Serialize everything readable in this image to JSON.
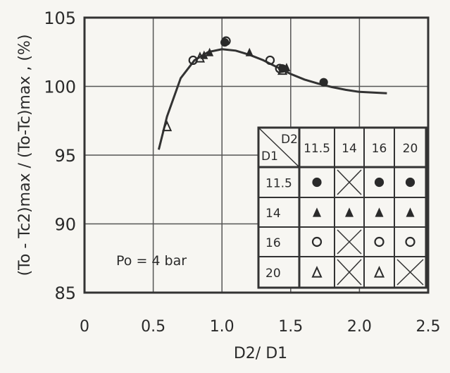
{
  "chart_data": {
    "type": "scatter",
    "xlabel": "D2/ D1",
    "ylabel": "(To - Tc2)max / (To-Tc)max , (%)",
    "xlim": [
      0,
      2.5
    ],
    "ylim": [
      85,
      105
    ],
    "x_ticks": [
      "0",
      "0.5",
      "1.0",
      "1.5",
      "2.0",
      "2.5"
    ],
    "y_ticks": [
      "85",
      "90",
      "95",
      "100",
      "105"
    ],
    "annotation": "Po = 4 bar",
    "fit_curve": {
      "x": [
        0.54,
        0.6,
        0.7,
        0.8,
        0.9,
        1.0,
        1.1,
        1.2,
        1.3,
        1.4,
        1.5,
        1.6,
        1.7,
        1.8,
        1.9,
        2.0,
        2.1,
        2.2
      ],
      "y": [
        95.4,
        97.8,
        100.6,
        101.9,
        102.5,
        102.7,
        102.6,
        102.3,
        101.9,
        101.4,
        100.9,
        100.5,
        100.2,
        99.95,
        99.75,
        99.6,
        99.55,
        99.5
      ]
    },
    "series": [
      {
        "name": "D1 11.5",
        "marker": "filled-circle",
        "x": [
          1.02,
          1.44,
          1.74
        ],
        "y": [
          103.2,
          101.3,
          100.3
        ]
      },
      {
        "name": "D1 14",
        "marker": "filled-triangle",
        "x": [
          0.87,
          0.91,
          1.2,
          1.47
        ],
        "y": [
          102.3,
          102.5,
          102.5,
          101.4
        ]
      },
      {
        "name": "D1 16",
        "marker": "open-circle",
        "x": [
          0.79,
          1.03,
          1.35,
          1.42
        ],
        "y": [
          101.9,
          103.3,
          101.9,
          101.3
        ]
      },
      {
        "name": "D1 20",
        "marker": "open-triangle",
        "x": [
          0.6,
          0.84,
          1.44
        ],
        "y": [
          97.1,
          102.1,
          101.2
        ]
      }
    ],
    "legend_table": {
      "corner_d1": "D1",
      "corner_d2": "D2",
      "col_headers": [
        "11.5",
        "14",
        "16",
        "20"
      ],
      "rows": [
        {
          "label": "11.5",
          "cells": [
            "filled-circle",
            "cross",
            "filled-circle",
            "filled-circle"
          ]
        },
        {
          "label": "14",
          "cells": [
            "filled-triangle",
            "filled-triangle",
            "filled-triangle",
            "filled-triangle"
          ]
        },
        {
          "label": "16",
          "cells": [
            "open-circle",
            "cross",
            "open-circle",
            "open-circle"
          ]
        },
        {
          "label": "20",
          "cells": [
            "open-triangle",
            "cross",
            "open-triangle",
            "cross"
          ]
        }
      ]
    }
  }
}
